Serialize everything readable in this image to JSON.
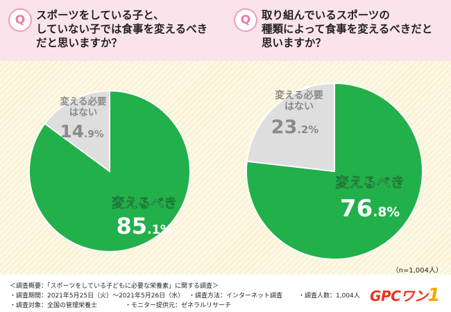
{
  "questions": [
    "スポーツをしている子と、\nしていない子では食事を変えるべき\nだと思いますか？",
    "取り組んでいるスポーツの\n種類によって食事を変えるべきだと\n思いますか？"
  ],
  "q_mark": "Q",
  "chart_data": [
    {
      "type": "pie",
      "slices": [
        {
          "label": "変えるべき",
          "value": 85.1,
          "display_int": "85",
          "display_dec": ".1%",
          "color": "#22b04b"
        },
        {
          "label": "変える必要\nはない",
          "value": 14.9,
          "display_int": "14",
          "display_dec": ".9%",
          "color": "#dedede"
        }
      ]
    },
    {
      "type": "pie",
      "slices": [
        {
          "label": "変えるべき",
          "value": 76.8,
          "display_int": "76",
          "display_dec": ".8%",
          "color": "#22b04b"
        },
        {
          "label": "変える必要\nはない",
          "value": 23.2,
          "display_int": "23",
          "display_dec": ".2%",
          "color": "#dedede"
        }
      ]
    }
  ],
  "sample_size": "（n=1,004人）",
  "footer": {
    "overview": "＜調査概要：「スポーツをしている子どもに必要な栄養素」に関する調査＞",
    "period": "・調査期間：2021年5月25日（火）〜2021年5月26日（水）",
    "method": "・調査方法：インターネット調査",
    "count": "・調査人数：1,004人",
    "target": "・調査対象：全国の管理栄養士",
    "monitor": "・モニター提供元：ゼネラルリサーチ"
  },
  "logo": {
    "text": "GPCワン",
    "mark": "1"
  },
  "colors": {
    "header_bg": "#fbe3ec",
    "accent_pink": "#f29ab8",
    "green": "#22b04b",
    "grey": "#dedede"
  }
}
